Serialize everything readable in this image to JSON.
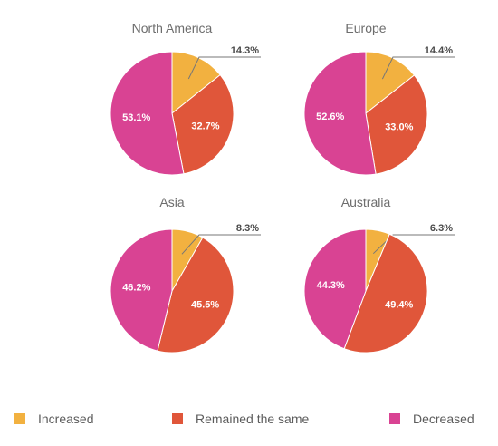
{
  "chart_data": [
    {
      "type": "pie",
      "title": "North America",
      "categories": [
        "Increased",
        "Remained the same",
        "Decreased"
      ],
      "values": [
        14.3,
        32.7,
        53.1
      ],
      "labels": [
        "14.3%",
        "32.7%",
        "53.1%"
      ]
    },
    {
      "type": "pie",
      "title": "Europe",
      "categories": [
        "Increased",
        "Remained the same",
        "Decreased"
      ],
      "values": [
        14.4,
        33.0,
        52.6
      ],
      "labels": [
        "14.4%",
        "33.0%",
        "52.6%"
      ]
    },
    {
      "type": "pie",
      "title": "Asia",
      "categories": [
        "Increased",
        "Remained the same",
        "Decreased"
      ],
      "values": [
        8.3,
        45.5,
        46.2
      ],
      "labels": [
        "8.3%",
        "45.5%",
        "46.2%"
      ]
    },
    {
      "type": "pie",
      "title": "Australia",
      "categories": [
        "Increased",
        "Remained the same",
        "Decreased"
      ],
      "values": [
        6.3,
        49.4,
        44.3
      ],
      "labels": [
        "6.3%",
        "49.4%",
        "44.3%"
      ]
    }
  ],
  "legend": {
    "position": "bottom",
    "items": [
      {
        "label": "Increased",
        "color": "#f2b140"
      },
      {
        "label": "Remained the same",
        "color": "#e0563a"
      },
      {
        "label": "Decreased",
        "color": "#d94393"
      }
    ]
  }
}
